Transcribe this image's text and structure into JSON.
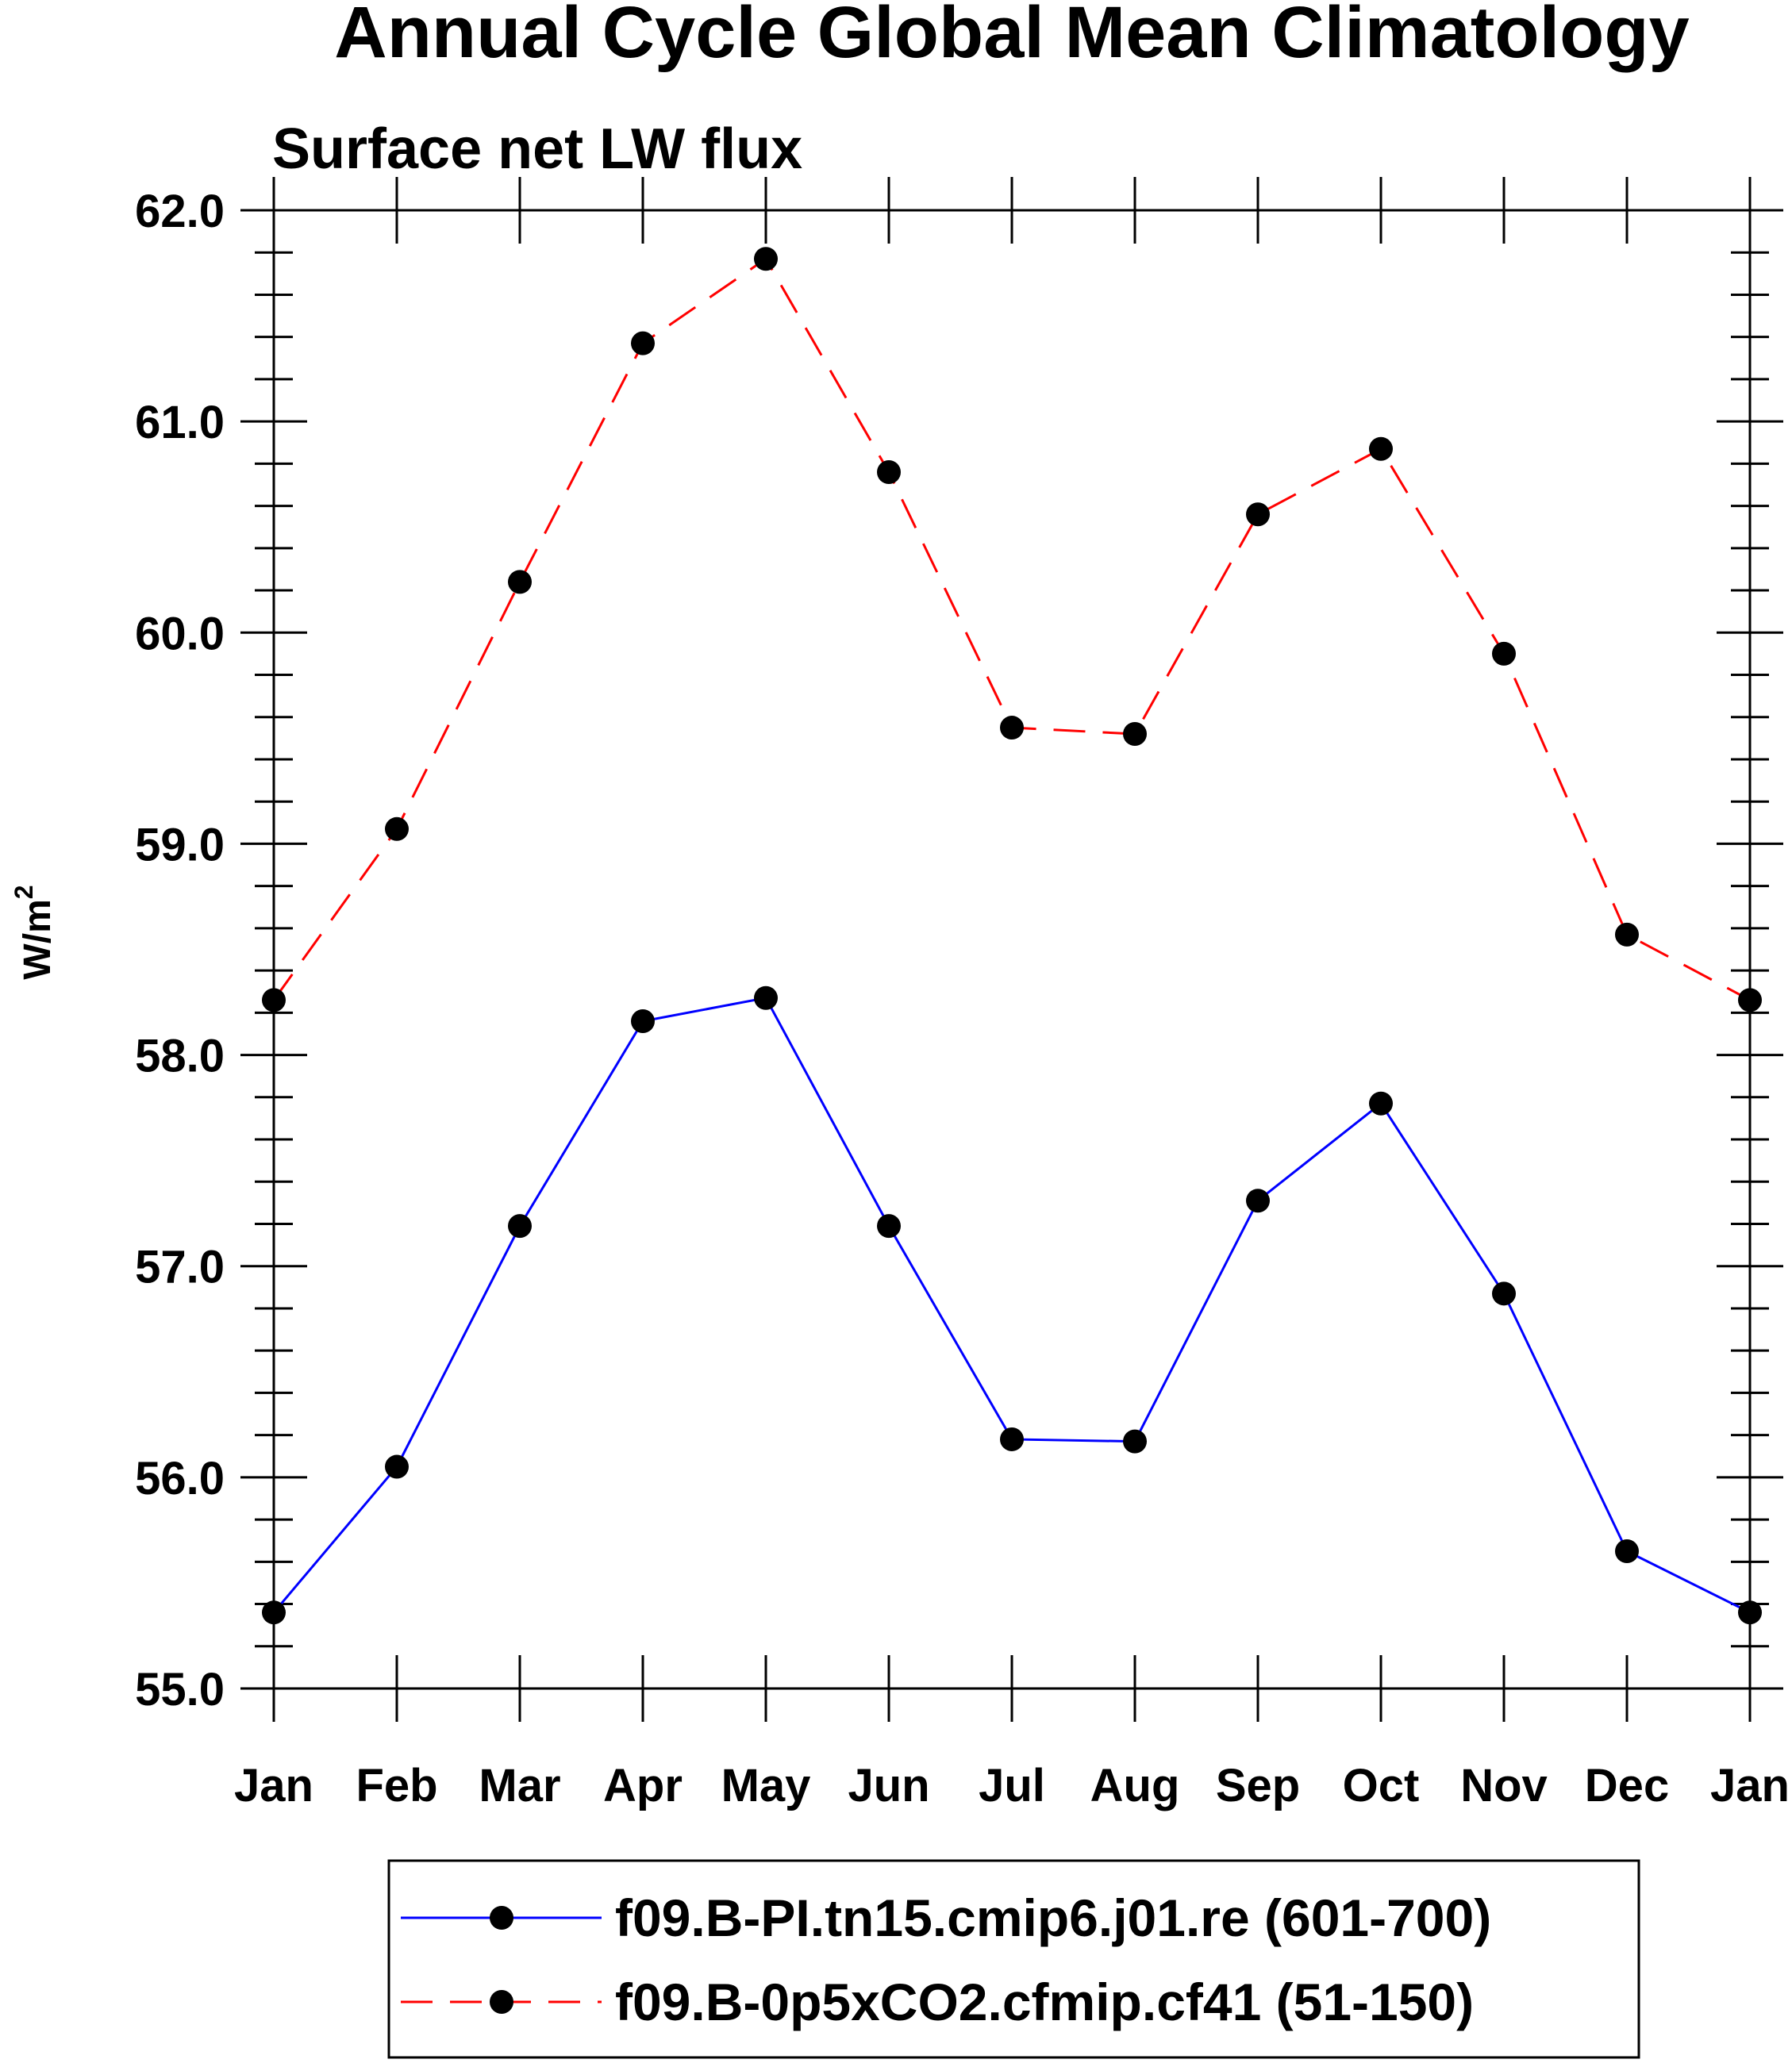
{
  "chart_data": {
    "type": "line",
    "title": "Annual Cycle Global Mean Climatology",
    "subtitle": "Surface net LW flux",
    "ylabel": "W/m",
    "ylabel_superscript": "2",
    "ylim": [
      55.0,
      62.0
    ],
    "yticks": [
      "55.0",
      "56.0",
      "57.0",
      "58.0",
      "59.0",
      "60.0",
      "61.0",
      "62.0"
    ],
    "categories": [
      "Jan",
      "Feb",
      "Mar",
      "Apr",
      "May",
      "Jun",
      "Jul",
      "Aug",
      "Sep",
      "Oct",
      "Nov",
      "Dec",
      "Jan"
    ],
    "series": [
      {
        "name": "f09.B-PI.tn15.cmip6.j01.re (601-700)",
        "color": "#0000ff",
        "dash": "solid",
        "values": [
          55.36,
          56.05,
          57.19,
          58.16,
          58.27,
          57.19,
          56.18,
          56.17,
          57.31,
          57.77,
          56.87,
          55.65,
          55.36
        ]
      },
      {
        "name": "f09.B-0p5xCO2.cfmip.cf41 (51-150)",
        "color": "#ff0000",
        "dash": "dashed",
        "values": [
          58.26,
          59.07,
          60.24,
          61.37,
          61.77,
          60.76,
          59.55,
          59.52,
          60.56,
          60.87,
          59.9,
          58.57,
          58.26
        ]
      }
    ]
  }
}
